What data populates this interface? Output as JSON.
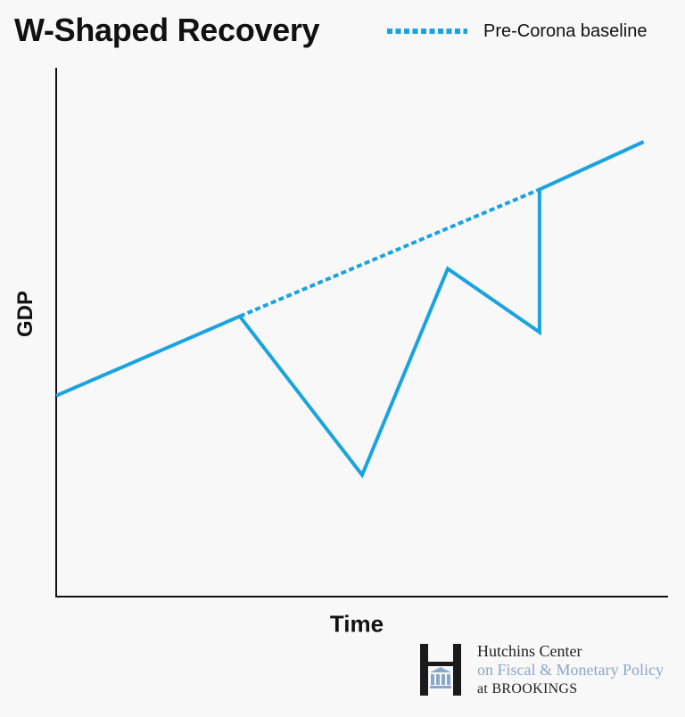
{
  "chart_data": {
    "type": "line",
    "title": "W-Shaped Recovery",
    "xlabel": "Time",
    "ylabel": "GDP",
    "grid": false,
    "legend_position": "top-right",
    "xlim": [
      0,
      100
    ],
    "ylim": [
      0,
      100
    ],
    "series": [
      {
        "key": "actual",
        "style": "solid",
        "color": "#1aa3e0",
        "x": [
          0,
          30,
          50,
          64,
          79,
          79,
          96
        ],
        "y": [
          38,
          53,
          23,
          62,
          50,
          77,
          86
        ]
      },
      {
        "key": "baseline",
        "name": "Pre-Corona baseline",
        "style": "dotted",
        "color": "#1aa3e0",
        "x": [
          30,
          79
        ],
        "y": [
          53,
          77
        ]
      }
    ]
  },
  "logo": {
    "line1": "Hutchins Center",
    "line2": "on Fiscal & Monetary Policy",
    "line3": "at BROOKINGS"
  }
}
